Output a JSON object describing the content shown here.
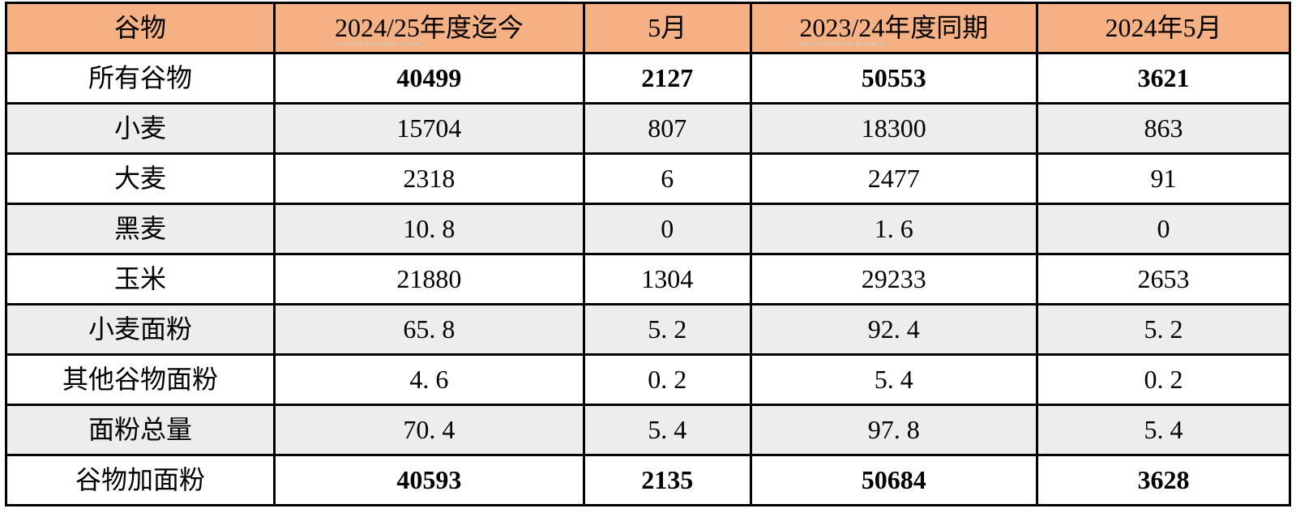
{
  "table": {
    "columns": [
      {
        "label": "谷物"
      },
      {
        "label_underlined": "2024/25",
        "label_rest": "年度迄今"
      },
      {
        "label": "5月"
      },
      {
        "label_underlined": "2023/24",
        "label_rest": "年度同期"
      },
      {
        "label": "2024年5月"
      }
    ],
    "rows": [
      {
        "label": "所有谷物",
        "values": [
          "40499",
          "2127",
          "50553",
          "3621"
        ],
        "bold_values": true,
        "shaded": false
      },
      {
        "label": "小麦",
        "values": [
          "15704",
          "807",
          "18300",
          "863"
        ],
        "bold_values": false,
        "shaded": true
      },
      {
        "label": "大麦",
        "values": [
          "2318",
          "6",
          "2477",
          "91"
        ],
        "bold_values": false,
        "shaded": false
      },
      {
        "label": "黑麦",
        "values": [
          "10. 8",
          "0",
          "1. 6",
          "0"
        ],
        "bold_values": false,
        "shaded": true
      },
      {
        "label": "玉米",
        "values": [
          "21880",
          "1304",
          "29233",
          "2653"
        ],
        "bold_values": false,
        "shaded": false
      },
      {
        "label": "小麦面粉",
        "values": [
          "65. 8",
          "5. 2",
          "92. 4",
          "5. 2"
        ],
        "bold_values": false,
        "shaded": true
      },
      {
        "label": "其他谷物面粉",
        "values": [
          "4. 6",
          "0. 2",
          "5. 4",
          "0. 2"
        ],
        "bold_values": false,
        "shaded": false
      },
      {
        "label": "面粉总量",
        "values": [
          "70. 4",
          "5. 4",
          "97. 8",
          "5. 4"
        ],
        "bold_values": false,
        "shaded": true
      },
      {
        "label": "谷物加面粉",
        "values": [
          "40593",
          "2135",
          "50684",
          "3628"
        ],
        "bold_values": true,
        "shaded": false
      }
    ],
    "colors": {
      "header_bg": "#F5B183",
      "shaded_row_bg": "#EDEDED",
      "border": "#000000",
      "text": "#000000",
      "squiggle": "#C9C9C9"
    }
  },
  "chart_data": {
    "type": "table",
    "title": "",
    "columns": [
      "谷物",
      "2024/25年度迄今",
      "5月",
      "2023/24年度同期",
      "2024年5月"
    ],
    "rows": [
      [
        "所有谷物",
        40499,
        2127,
        50553,
        3621
      ],
      [
        "小麦",
        15704,
        807,
        18300,
        863
      ],
      [
        "大麦",
        2318,
        6,
        2477,
        91
      ],
      [
        "黑麦",
        10.8,
        0,
        1.6,
        0
      ],
      [
        "玉米",
        21880,
        1304,
        29233,
        2653
      ],
      [
        "小麦面粉",
        65.8,
        5.2,
        92.4,
        5.2
      ],
      [
        "其他谷物面粉",
        4.6,
        0.2,
        5.4,
        0.2
      ],
      [
        "面粉总量",
        70.4,
        5.4,
        97.8,
        5.4
      ],
      [
        "谷物加面粉",
        40593,
        2135,
        50684,
        3628
      ]
    ],
    "layout_hints": {
      "header_fill": "#F5B183",
      "alternating_row_fill": "#EDEDED",
      "grid": true,
      "bold_rows": [
        "所有谷物",
        "谷物加面粉"
      ]
    }
  }
}
